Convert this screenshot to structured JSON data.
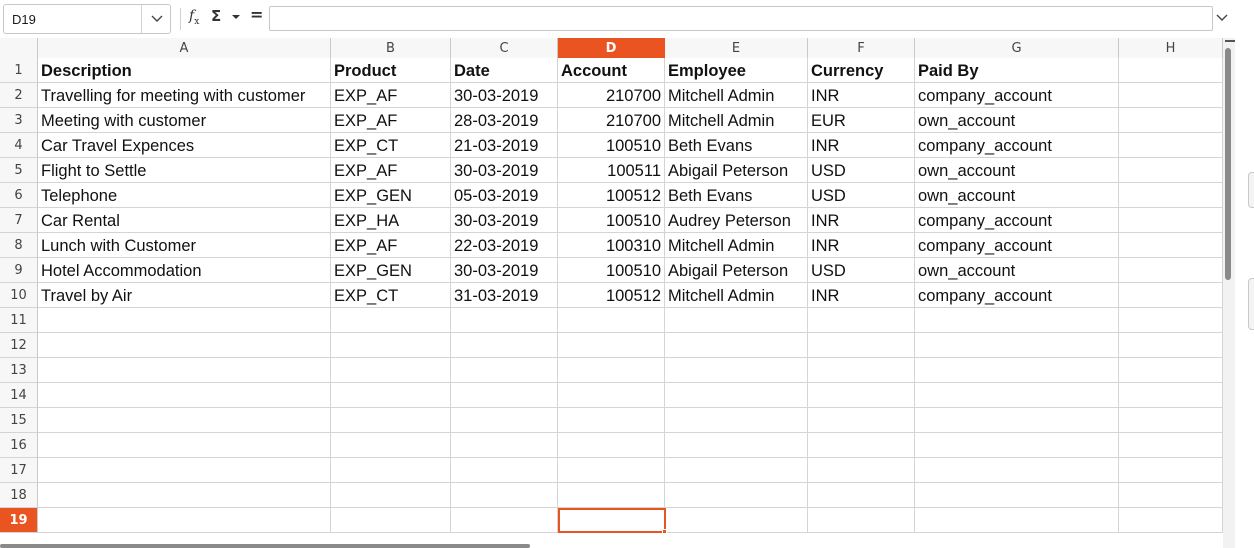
{
  "formula_bar": {
    "name_box": "D19",
    "formula": ""
  },
  "columns": [
    "A",
    "B",
    "C",
    "D",
    "E",
    "F",
    "G",
    "H"
  ],
  "active_column": "D",
  "active_row": "19",
  "row_numbers": [
    "1",
    "2",
    "3",
    "4",
    "5",
    "6",
    "7",
    "8",
    "9",
    "10",
    "11",
    "12",
    "13",
    "14",
    "15",
    "16",
    "17",
    "18",
    "19"
  ],
  "rows": [
    [
      "Description",
      "Product",
      "Date",
      "Account",
      "Employee",
      "Currency",
      "Paid By",
      ""
    ],
    [
      "Travelling for meeting with customer",
      "EXP_AF",
      "30-03-2019",
      "210700",
      "Mitchell Admin",
      "INR",
      "company_account",
      ""
    ],
    [
      "Meeting with customer",
      "EXP_AF",
      "28-03-2019",
      "210700",
      "Mitchell Admin",
      "EUR",
      "own_account",
      ""
    ],
    [
      "Car Travel Expences",
      "EXP_CT",
      "21-03-2019",
      "100510",
      "Beth Evans",
      "INR",
      "company_account",
      ""
    ],
    [
      "Flight to Settle",
      "EXP_AF",
      "30-03-2019",
      "100511",
      "Abigail Peterson",
      "USD",
      "own_account",
      ""
    ],
    [
      "Telephone",
      "EXP_GEN",
      "05-03-2019",
      "100512",
      "Beth Evans",
      "USD",
      "own_account",
      ""
    ],
    [
      "Car Rental",
      "EXP_HA",
      "30-03-2019",
      "100510",
      "Audrey Peterson",
      "INR",
      "company_account",
      ""
    ],
    [
      "Lunch with Customer",
      "EXP_AF",
      "22-03-2019",
      "100310",
      "Mitchell Admin",
      "INR",
      "company_account",
      ""
    ],
    [
      "Hotel Accommodation",
      "EXP_GEN",
      "30-03-2019",
      "100510",
      "Abigail Peterson",
      "USD",
      "own_account",
      ""
    ],
    [
      "Travel by Air",
      "EXP_CT",
      "31-03-2019",
      "100512",
      "Mitchell Admin",
      "INR",
      "company_account",
      ""
    ],
    [
      "",
      "",
      "",
      "",
      "",
      "",
      "",
      ""
    ],
    [
      "",
      "",
      "",
      "",
      "",
      "",
      "",
      ""
    ],
    [
      "",
      "",
      "",
      "",
      "",
      "",
      "",
      ""
    ],
    [
      "",
      "",
      "",
      "",
      "",
      "",
      "",
      ""
    ],
    [
      "",
      "",
      "",
      "",
      "",
      "",
      "",
      ""
    ],
    [
      "",
      "",
      "",
      "",
      "",
      "",
      "",
      ""
    ],
    [
      "",
      "",
      "",
      "",
      "",
      "",
      "",
      ""
    ],
    [
      "",
      "",
      "",
      "",
      "",
      "",
      "",
      ""
    ],
    [
      "",
      "",
      "",
      "",
      "",
      "",
      "",
      ""
    ]
  ],
  "numeric_column": "D",
  "accent_color": "#e95420"
}
